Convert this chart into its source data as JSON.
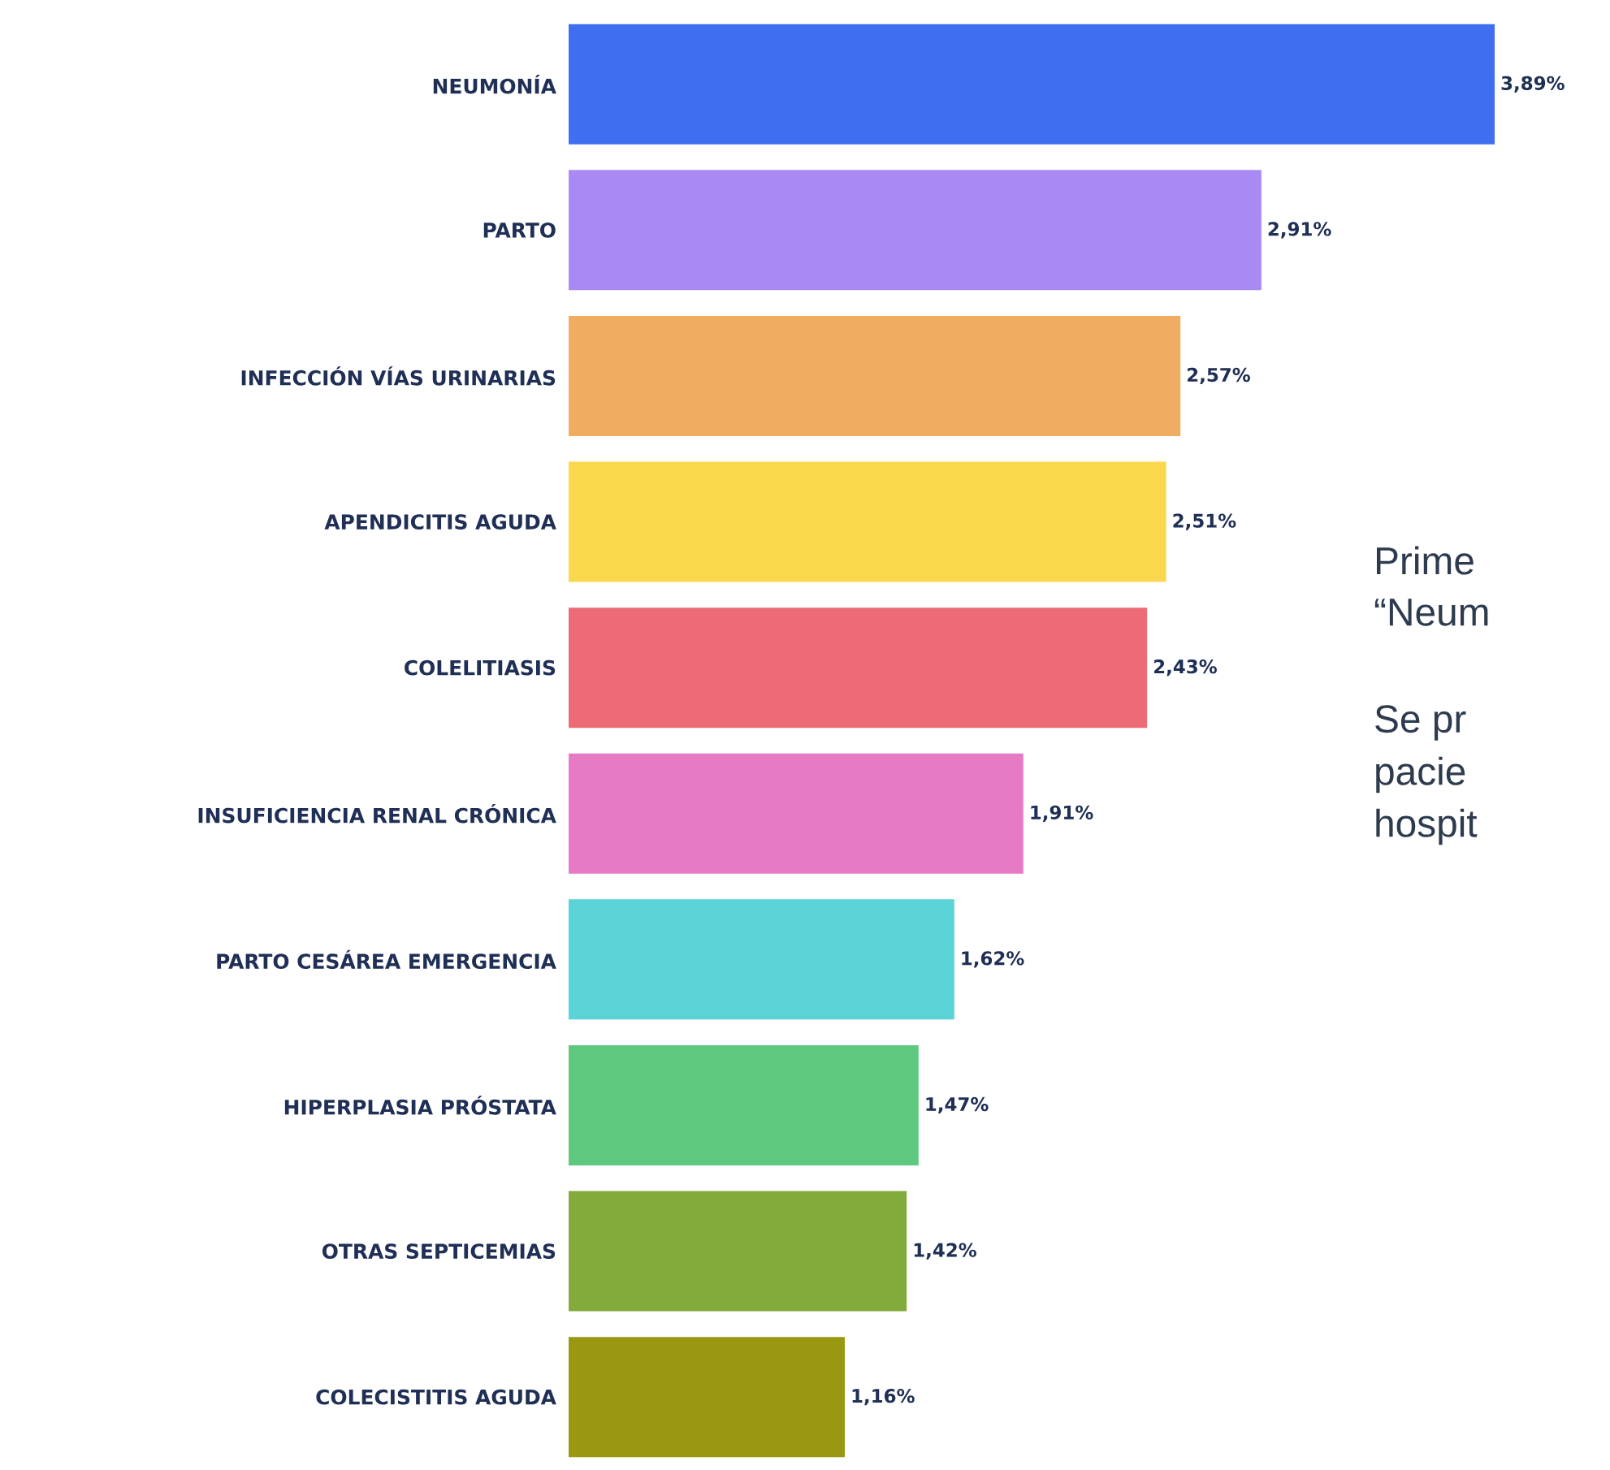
{
  "chart_data": {
    "type": "bar",
    "orientation": "horizontal",
    "categories": [
      "NEUMONÍA",
      "PARTO",
      "INFECCIÓN VÍAS URINARIAS",
      "APENDICITIS AGUDA",
      "COLELITIASIS",
      "INSUFICIENCIA RENAL CRÓNICA",
      "PARTO CESÁREA EMERGENCIA",
      "HIPERPLASIA PRÓSTATA",
      "OTRAS SEPTICEMIAS",
      "COLECISTITIS AGUDA"
    ],
    "values": [
      3.89,
      2.91,
      2.57,
      2.51,
      2.43,
      1.91,
      1.62,
      1.47,
      1.42,
      1.16
    ],
    "value_labels": [
      "3,89%",
      "2,91%",
      "2,57%",
      "2,51%",
      "2,43%",
      "1,91%",
      "1,62%",
      "1,47%",
      "1,42%",
      "1,16%"
    ],
    "colors": [
      "#3f6ff0",
      "#a98af5",
      "#f0ad62",
      "#fad84e",
      "#ec6b74",
      "#e77ac4",
      "#5ad3d6",
      "#5ec97e",
      "#82ab3c",
      "#9a9710"
    ],
    "annotations": [
      "Prime",
      "“Neum",
      "Se pr",
      "pacie",
      "hospit"
    ]
  }
}
